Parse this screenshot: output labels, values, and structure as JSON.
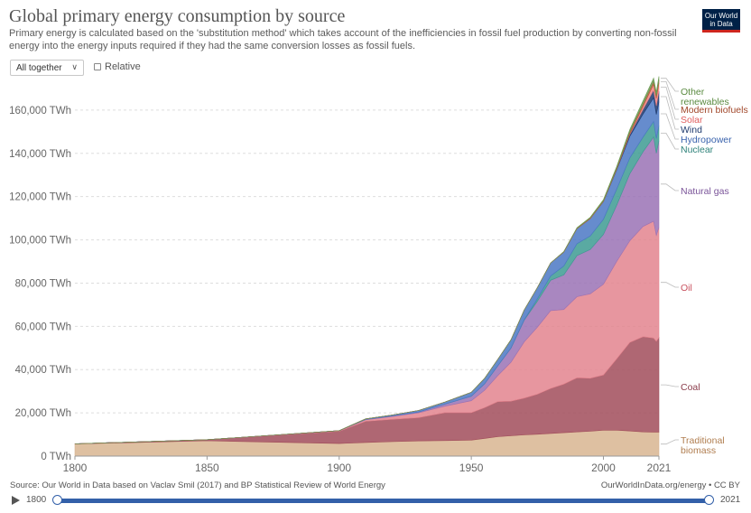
{
  "header": {
    "title": "Global primary energy consumption by source",
    "subtitle": "Primary energy is calculated based on the 'substitution method' which takes account of the inefficiencies in fossil fuel production by converting non-fossil energy into the energy inputs required if they had the same conversion losses as fossil fuels.",
    "logo_line1": "Our World",
    "logo_line2": "in Data"
  },
  "controls": {
    "mode_select": "All together",
    "relative_label": "Relative"
  },
  "footer": {
    "source": "Source: Our World in Data based on Vaclav Smil (2017) and BP Statistical Review of World Energy",
    "url": "OurWorldInData.org/energy • CC BY"
  },
  "timeline": {
    "start": "1800",
    "end": "2021"
  },
  "chart_data": {
    "type": "area",
    "stacked": true,
    "title": "Global primary energy consumption by source",
    "xlim": [
      1800,
      2021
    ],
    "ylim": [
      0,
      175000
    ],
    "unit": "TWh",
    "y_ticks": [
      0,
      20000,
      40000,
      60000,
      80000,
      100000,
      120000,
      140000,
      160000
    ],
    "y_tick_labels": [
      "0 TWh",
      "20,000 TWh",
      "40,000 TWh",
      "60,000 TWh",
      "80,000 TWh",
      "100,000 TWh",
      "120,000 TWh",
      "140,000 TWh",
      "160,000 TWh"
    ],
    "x_ticks": [
      1800,
      1850,
      1900,
      1950,
      2000,
      2021
    ],
    "x_tick_labels": [
      "1800",
      "1850",
      "1900",
      "1950",
      "2000",
      "2021"
    ],
    "grid": "horizontal",
    "legend": "right, inline labels at series end",
    "x": [
      1800,
      1850,
      1900,
      1910,
      1920,
      1930,
      1940,
      1950,
      1955,
      1960,
      1965,
      1970,
      1975,
      1980,
      1985,
      1990,
      1995,
      2000,
      2005,
      2010,
      2015,
      2019,
      2020,
      2021
    ],
    "series": [
      {
        "name": "Traditional biomass",
        "color": "#d8b590",
        "values": [
          5600,
          7100,
          5800,
          6300,
          6700,
          7000,
          7200,
          7400,
          8200,
          9000,
          9400,
          9800,
          10100,
          10500,
          10800,
          11200,
          11500,
          12000,
          12000,
          11600,
          11200,
          11100,
          11100,
          11100
        ]
      },
      {
        "name": "Coal",
        "color": "#a14c5b",
        "values": [
          100,
          500,
          5700,
          9800,
          10300,
          10800,
          12900,
          12700,
          14200,
          16200,
          16000,
          17000,
          18500,
          20800,
          22500,
          25000,
          24500,
          25500,
          33000,
          41000,
          44000,
          43500,
          42000,
          43700
        ]
      },
      {
        "name": "Oil",
        "color": "#e3848e",
        "values": [
          0,
          0,
          200,
          700,
          1300,
          2200,
          3000,
          5500,
          8000,
          12000,
          18000,
          26000,
          31000,
          36000,
          34500,
          37500,
          39000,
          42000,
          45000,
          47000,
          51000,
          54000,
          49000,
          51000
        ]
      },
      {
        "name": "Natural gas",
        "color": "#9a72b5",
        "values": [
          0,
          0,
          70,
          200,
          300,
          400,
          900,
          2100,
          3000,
          4500,
          6500,
          10000,
          12000,
          14000,
          16000,
          19000,
          20500,
          23000,
          26000,
          31000,
          34500,
          39000,
          38000,
          40000
        ]
      },
      {
        "name": "Nuclear",
        "color": "#3d9b92",
        "values": [
          0,
          0,
          0,
          0,
          0,
          0,
          0,
          0,
          0,
          0,
          100,
          200,
          1100,
          2000,
          4100,
          5500,
          6300,
          7000,
          7400,
          7300,
          6800,
          7100,
          6800,
          7000
        ]
      },
      {
        "name": "Hydropower",
        "color": "#4b78c4",
        "values": [
          0,
          0,
          0,
          200,
          400,
          700,
          1000,
          1800,
          2500,
          3000,
          3800,
          4500,
          5200,
          6000,
          6500,
          7000,
          8000,
          8200,
          9000,
          10000,
          10700,
          11000,
          11100,
          11000
        ]
      },
      {
        "name": "Wind",
        "color": "#1f3a6e",
        "values": [
          0,
          0,
          0,
          0,
          0,
          0,
          0,
          0,
          0,
          0,
          0,
          0,
          0,
          0,
          0,
          10,
          20,
          100,
          300,
          900,
          2200,
          3500,
          4000,
          4900
        ]
      },
      {
        "name": "Solar",
        "color": "#f28585",
        "values": [
          0,
          0,
          0,
          0,
          0,
          0,
          0,
          0,
          0,
          0,
          0,
          0,
          0,
          0,
          0,
          5,
          10,
          20,
          50,
          300,
          1300,
          2700,
          3400,
          3800
        ]
      },
      {
        "name": "Modern biofuels",
        "color": "#b55a37",
        "values": [
          0,
          0,
          0,
          0,
          0,
          0,
          0,
          0,
          0,
          0,
          0,
          0,
          0,
          0,
          100,
          200,
          300,
          300,
          500,
          1000,
          1200,
          1300,
          1200,
          1300
        ]
      },
      {
        "name": "Other renewables",
        "color": "#6b9a52",
        "values": [
          0,
          0,
          0,
          0,
          0,
          0,
          0,
          0,
          0,
          0,
          0,
          0,
          0,
          0,
          100,
          200,
          300,
          500,
          700,
          1000,
          1400,
          1600,
          1700,
          1800
        ]
      }
    ]
  }
}
